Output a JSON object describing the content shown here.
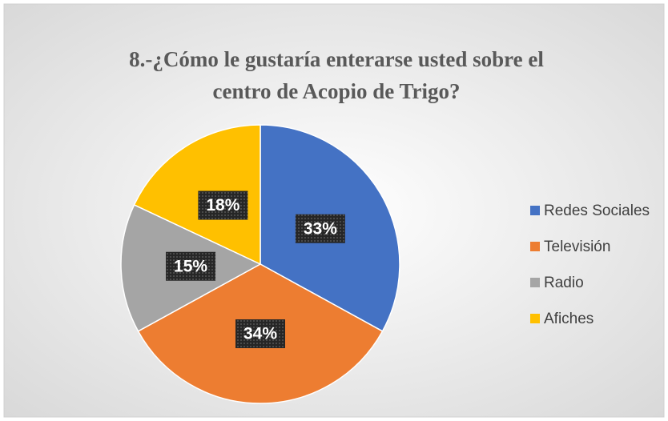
{
  "chart_data": {
    "type": "pie",
    "title": "8.-¿Cómo le gustaría enterarse usted sobre el centro de Acopio de Trigo?",
    "categories": [
      "Redes Sociales",
      "Televisión",
      "Radio",
      "Afiches"
    ],
    "values": [
      33,
      34,
      15,
      18
    ],
    "value_labels": [
      "33%",
      "34%",
      "15%",
      "18%"
    ],
    "colors": [
      "#4472c4",
      "#ed7d31",
      "#a5a5a5",
      "#ffc000"
    ],
    "legend": "right"
  }
}
